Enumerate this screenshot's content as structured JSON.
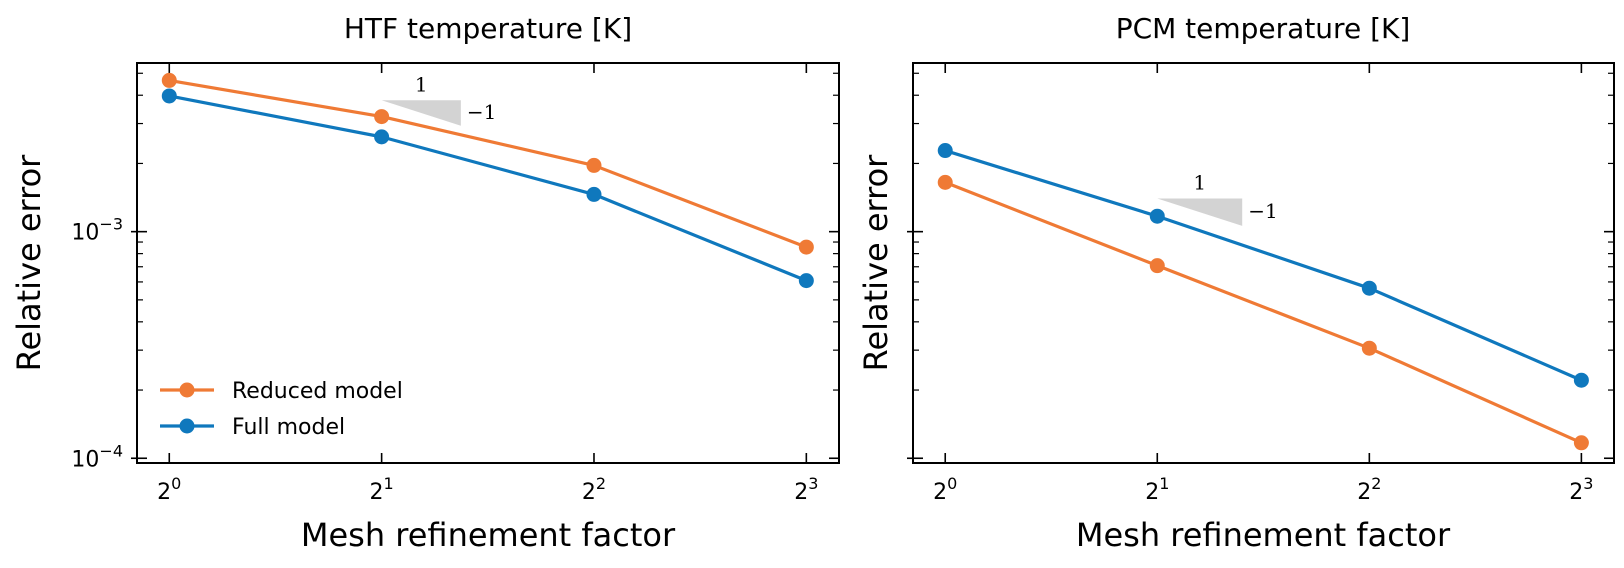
{
  "colors": {
    "reduced": "#ef7a35",
    "full": "#0f78bd",
    "triangle": "#d3d3d3",
    "axis": "#000000"
  },
  "chart_data": [
    {
      "type": "line",
      "title": "HTF temperature [K]",
      "xlabel": "Mesh refinement factor",
      "ylabel": "Relative error",
      "xscale": "log2",
      "yscale": "log10",
      "x": [
        1,
        2,
        4,
        8
      ],
      "xticks": [
        {
          "base": "2",
          "exp": "0"
        },
        {
          "base": "2",
          "exp": "1"
        },
        {
          "base": "2",
          "exp": "2"
        },
        {
          "base": "2",
          "exp": "3"
        }
      ],
      "yticks": [
        {
          "value": 0.0001,
          "base": "10",
          "exp": "−4"
        },
        {
          "value": 0.001,
          "base": "10",
          "exp": "−3"
        }
      ],
      "xlim": [
        0.9,
        8.9
      ],
      "ylim": [
        9.53e-05,
        0.00555
      ],
      "series": [
        {
          "name": "Reduced model",
          "color": "#ef7a35",
          "values": [
            0.00465,
            0.00322,
            0.00196,
            0.000855
          ]
        },
        {
          "name": "Full model",
          "color": "#0f78bd",
          "values": [
            0.00397,
            0.00262,
            0.00146,
            0.000608
          ]
        }
      ],
      "slope_triangle": {
        "x0": 2,
        "x1": 2.59,
        "y0": 0.0038,
        "slope": -1,
        "run_label": "1",
        "rise_label": "−1"
      },
      "legend": {
        "position": "lower-left",
        "entries": [
          "Reduced model",
          "Full model"
        ]
      },
      "grid": false
    },
    {
      "type": "line",
      "title": "PCM temperature [K]",
      "xlabel": "Mesh refinement factor",
      "ylabel": "Relative error",
      "xscale": "log2",
      "yscale": "log10",
      "x": [
        1,
        2,
        4,
        8
      ],
      "xticks": [
        {
          "base": "2",
          "exp": "0"
        },
        {
          "base": "2",
          "exp": "1"
        },
        {
          "base": "2",
          "exp": "2"
        },
        {
          "base": "2",
          "exp": "3"
        }
      ],
      "yticks": [],
      "xlim": [
        0.9,
        8.9
      ],
      "ylim": [
        9.53e-05,
        0.00555
      ],
      "series": [
        {
          "name": "Reduced model",
          "color": "#ef7a35",
          "values": [
            0.00165,
            0.000708,
            0.000306,
            0.000117
          ]
        },
        {
          "name": "Full model",
          "color": "#0f78bd",
          "values": [
            0.00228,
            0.00117,
            0.000563,
            0.000221
          ]
        }
      ],
      "slope_triangle": {
        "x0": 2,
        "x1": 2.64,
        "y0": 0.0014,
        "slope": -1,
        "run_label": "1",
        "rise_label": "−1"
      },
      "grid": false
    }
  ]
}
